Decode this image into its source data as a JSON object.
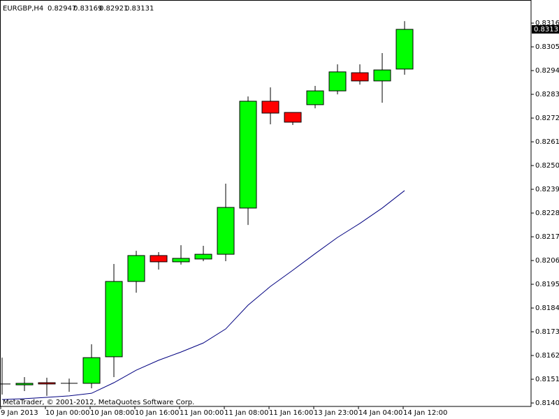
{
  "chart_data": {
    "type": "candlestick",
    "title": "EURGBP,H4",
    "watermark": "MetaTrader, © 2001-2012, MetaQuotes Software Corp.",
    "categories": [
      "9 Jan 2013",
      null,
      "10 Jan 00:00",
      null,
      "10 Jan 08:00",
      null,
      "10 Jan 16:00",
      null,
      "11 Jan 00:00",
      null,
      "11 Jan 08:00",
      null,
      "11 Jan 16:00",
      null,
      "13 Jan 23:00",
      null,
      "14 Jan 04:00",
      null,
      "14 Jan 12:00"
    ],
    "open": [
      0.81488,
      0.81484,
      0.81494,
      0.81491,
      0.81491,
      0.81614,
      0.81963,
      0.82083,
      0.82054,
      0.82067,
      0.82089,
      0.82303,
      0.82798,
      0.82746,
      0.82782,
      0.82846,
      0.8293,
      0.82892,
      0.82947
    ],
    "high": [
      0.8161,
      0.8152,
      0.81517,
      0.81513,
      0.81672,
      0.82044,
      0.82105,
      0.82099,
      0.82131,
      0.82128,
      0.82416,
      0.8282,
      0.82862,
      0.82746,
      0.82869,
      0.82969,
      0.82969,
      0.83021,
      0.83169
    ],
    "low": [
      0.81439,
      0.81455,
      0.81433,
      0.81452,
      0.81468,
      0.8152,
      0.81911,
      0.82018,
      0.82041,
      0.82057,
      0.82057,
      0.82225,
      0.82691,
      0.82688,
      0.82765,
      0.8283,
      0.82875,
      0.82791,
      0.82921
    ],
    "close": [
      0.81488,
      0.81491,
      0.81488,
      0.81491,
      0.8161,
      0.81963,
      0.82083,
      0.82054,
      0.8207,
      0.82089,
      0.82306,
      0.82798,
      0.82743,
      0.82701,
      0.82846,
      0.82934,
      0.82892,
      0.82943,
      0.83131
    ],
    "up_color": "#00ff00",
    "down_color": "#ff0000",
    "doji_color": "#000000",
    "outline_color": "#000000",
    "series": [
      {
        "color": "#000080",
        "values": [
          0.81416,
          0.8142,
          0.81426,
          0.81433,
          0.81445,
          0.81494,
          0.81552,
          0.81598,
          0.81636,
          0.81678,
          0.81743,
          0.81853,
          0.8194,
          0.82015,
          0.82092,
          0.82167,
          0.82232,
          0.82303,
          0.82384
        ]
      }
    ],
    "ylim": [
      0.81384,
      0.83267
    ],
    "yticks": [
      {
        "value": 0.8316,
        "label": "0.83160"
      },
      {
        "value": 0.8305,
        "label": "0.83050"
      },
      {
        "value": 0.8294,
        "label": "0.82940"
      },
      {
        "value": 0.8283,
        "label": "0.82830"
      },
      {
        "value": 0.8272,
        "label": "0.82720"
      },
      {
        "value": 0.8261,
        "label": "0.82610"
      },
      {
        "value": 0.825,
        "label": "0.82500"
      },
      {
        "value": 0.8239,
        "label": "0.82390"
      },
      {
        "value": 0.8228,
        "label": "0.82280"
      },
      {
        "value": 0.8217,
        "label": "0.82170"
      },
      {
        "value": 0.8206,
        "label": "0.82060"
      },
      {
        "value": 0.8195,
        "label": "0.81950"
      },
      {
        "value": 0.8184,
        "label": "0.81840"
      },
      {
        "value": 0.8173,
        "label": "0.81730"
      },
      {
        "value": 0.8162,
        "label": "0.81620"
      },
      {
        "value": 0.8151,
        "label": "0.81510"
      },
      {
        "value": 0.814,
        "label": "0.81400"
      }
    ]
  }
}
